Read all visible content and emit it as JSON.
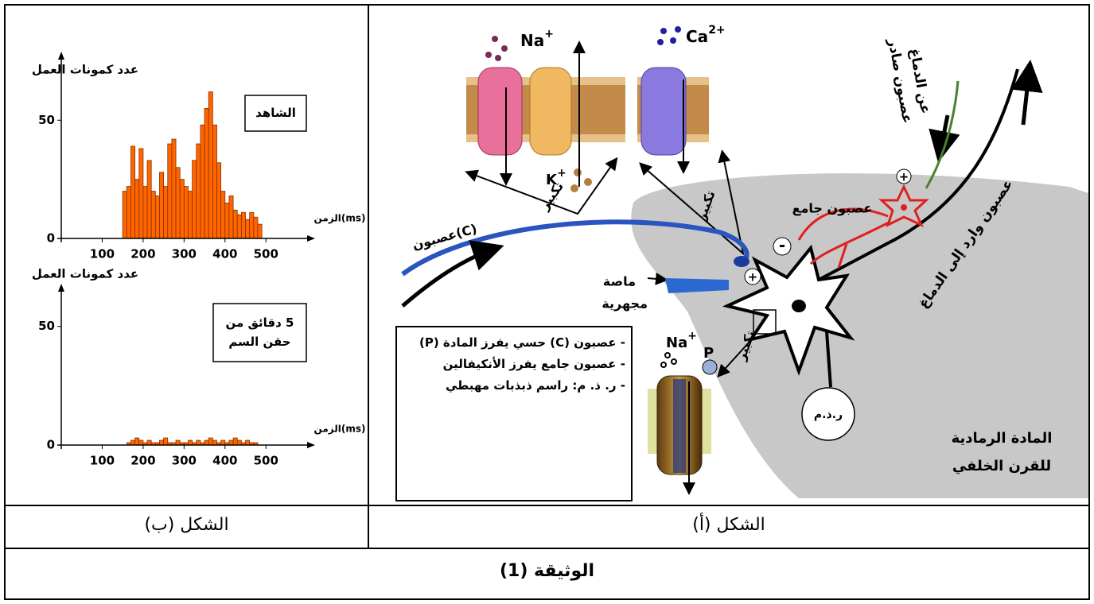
{
  "chart_data": [
    {
      "type": "histogram",
      "y_label": "عدد كمونات العمل",
      "x_label": "الزمن(ms)",
      "annotation": [
        "الشاهد"
      ],
      "bins": [
        150,
        160,
        170,
        180,
        190,
        200,
        210,
        220,
        230,
        240,
        250,
        260,
        270,
        280,
        290,
        300,
        310,
        320,
        330,
        340,
        350,
        360,
        370,
        380,
        390,
        400,
        410,
        420,
        430,
        440,
        450,
        460,
        470,
        480,
        490
      ],
      "values": [
        20,
        22,
        39,
        25,
        38,
        22,
        33,
        20,
        18,
        28,
        22,
        40,
        42,
        30,
        25,
        22,
        20,
        33,
        40,
        48,
        55,
        62,
        48,
        32,
        20,
        15,
        18,
        12,
        10,
        11,
        8,
        11,
        9,
        6
      ],
      "color": "#ff6600",
      "xlim": [
        0,
        620
      ],
      "ylim": [
        0,
        79
      ],
      "xticks": [
        100,
        200,
        300,
        400,
        500
      ],
      "yticks": [
        0,
        50
      ]
    },
    {
      "type": "histogram",
      "y_label": "عدد كمونات العمل",
      "x_label": "الزمن(ms)",
      "annotation": [
        "5 دقائق من",
        "حقن السم"
      ],
      "bins": [
        160,
        170,
        180,
        190,
        200,
        210,
        220,
        230,
        240,
        250,
        260,
        270,
        280,
        290,
        300,
        310,
        320,
        330,
        340,
        350,
        360,
        370,
        380,
        390,
        400,
        410,
        420,
        430,
        440,
        450,
        460,
        470,
        480
      ],
      "values": [
        1,
        2,
        3,
        2,
        1,
        2,
        1,
        1,
        2,
        3,
        1,
        1,
        2,
        1,
        1,
        2,
        1,
        2,
        1,
        2,
        3,
        2,
        1,
        2,
        1,
        2,
        3,
        2,
        1,
        2,
        1,
        1
      ],
      "color": "#ff6600",
      "xlim": [
        0,
        620
      ],
      "ylim": [
        0,
        68
      ],
      "xticks": [
        100,
        200,
        300,
        400,
        500
      ],
      "yticks": [
        0,
        50
      ]
    }
  ],
  "figure_a": {
    "ions": [
      {
        "symbol": "Na",
        "charge": "+"
      },
      {
        "symbol": "Ca",
        "charge": "2+"
      },
      {
        "symbol": "K",
        "charge": "+"
      },
      {
        "symbol": "Na",
        "charge": "+"
      }
    ],
    "magnify_labels": [
      "تكبير",
      "تكبير",
      "تكبير"
    ],
    "neuron_c": "عصبون(C)",
    "pipette": [
      "ماصة",
      "مجهرية"
    ],
    "interneuron": "عصبون جامع",
    "efferent": [
      "عصبون صادر",
      "عن الدماغ"
    ],
    "afferent": "عصبون وارد إلى الدماغ",
    "signs": [
      "+",
      "-",
      "+"
    ],
    "oscilloscope": "ر.ذ.م",
    "gray_matter": [
      "المادة الرمادية",
      "للقرن الخلفي"
    ],
    "substance": "P",
    "legend": [
      "- عصبون (C) حسي يفرز المادة (P)",
      "- عصبون جامع يفرز الأنكيفالين",
      "- ر. ذ. م: راسم ذبذبات مهبطي"
    ]
  },
  "captions": {
    "figure_b": "الشكل (ب)",
    "figure_a": "الشكل (أ)"
  },
  "document_title": "الوثيقة (1)"
}
